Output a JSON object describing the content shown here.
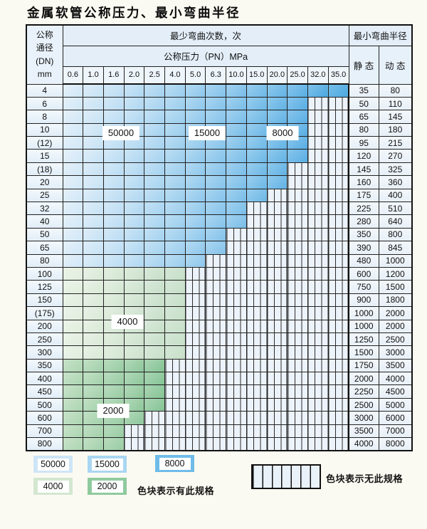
{
  "title": "金属软管公称压力、最小弯曲半径",
  "table": {
    "dn_header_lines": [
      "公称",
      "通径",
      "(DN)",
      "mm"
    ],
    "cycles_header": "最少弯曲次数，次",
    "pressure_header": "公称压力（PN）MPa",
    "radius_header": "最小弯曲半径",
    "static_label": "静 态",
    "dynamic_label": "动 态",
    "pressures": [
      "0.6",
      "1.0",
      "1.6",
      "2.0",
      "2.5",
      "4.0",
      "5.0",
      "6.3",
      "10.0",
      "15.0",
      "20.0",
      "25.0",
      "32.0",
      "35.0"
    ],
    "zone_labels": [
      "50000",
      "15000",
      "8000",
      "4000",
      "2000"
    ],
    "rows": [
      {
        "dn": "4",
        "zone": "blue",
        "spec_through": "35.0",
        "static": "35",
        "dynamic": "80"
      },
      {
        "dn": "6",
        "zone": "blue",
        "spec_through": "25.0",
        "static": "50",
        "dynamic": "110"
      },
      {
        "dn": "8",
        "zone": "blue",
        "spec_through": "25.0",
        "static": "65",
        "dynamic": "145"
      },
      {
        "dn": "10",
        "zone": "blue",
        "spec_through": "25.0",
        "static": "80",
        "dynamic": "180"
      },
      {
        "dn": "(12)",
        "zone": "blue",
        "spec_through": "25.0",
        "static": "95",
        "dynamic": "215"
      },
      {
        "dn": "15",
        "zone": "blue",
        "spec_through": "25.0",
        "static": "120",
        "dynamic": "270"
      },
      {
        "dn": "(18)",
        "zone": "blue",
        "spec_through": "20.0",
        "static": "145",
        "dynamic": "325"
      },
      {
        "dn": "20",
        "zone": "blue",
        "spec_through": "20.0",
        "static": "160",
        "dynamic": "360"
      },
      {
        "dn": "25",
        "zone": "blue",
        "spec_through": "15.0",
        "static": "175",
        "dynamic": "400"
      },
      {
        "dn": "32",
        "zone": "blue",
        "spec_through": "10.0",
        "static": "225",
        "dynamic": "510"
      },
      {
        "dn": "40",
        "zone": "blue",
        "spec_through": "10.0",
        "static": "280",
        "dynamic": "640"
      },
      {
        "dn": "50",
        "zone": "blue",
        "spec_through": "6.3",
        "static": "350",
        "dynamic": "800"
      },
      {
        "dn": "65",
        "zone": "blue",
        "spec_through": "6.3",
        "static": "390",
        "dynamic": "845"
      },
      {
        "dn": "80",
        "zone": "blue",
        "spec_through": "5.0",
        "static": "480",
        "dynamic": "1000"
      },
      {
        "dn": "100",
        "zone": "green4000",
        "spec_through": "4.0",
        "static": "600",
        "dynamic": "1200"
      },
      {
        "dn": "125",
        "zone": "green4000",
        "spec_through": "4.0",
        "static": "750",
        "dynamic": "1500"
      },
      {
        "dn": "150",
        "zone": "green4000",
        "spec_through": "4.0",
        "static": "900",
        "dynamic": "1800"
      },
      {
        "dn": "(175)",
        "zone": "green4000",
        "spec_through": "4.0",
        "static": "1000",
        "dynamic": "2000"
      },
      {
        "dn": "200",
        "zone": "green4000",
        "spec_through": "4.0",
        "static": "1000",
        "dynamic": "2000"
      },
      {
        "dn": "250",
        "zone": "green4000",
        "spec_through": "4.0",
        "static": "1250",
        "dynamic": "2500"
      },
      {
        "dn": "300",
        "zone": "green4000",
        "spec_through": "4.0",
        "static": "1500",
        "dynamic": "3000"
      },
      {
        "dn": "350",
        "zone": "green2000",
        "spec_through": "2.5",
        "static": "1750",
        "dynamic": "3500"
      },
      {
        "dn": "400",
        "zone": "green2000",
        "spec_through": "2.5",
        "static": "2000",
        "dynamic": "4000"
      },
      {
        "dn": "450",
        "zone": "green2000",
        "spec_through": "2.5",
        "static": "2250",
        "dynamic": "4500"
      },
      {
        "dn": "500",
        "zone": "green2000",
        "spec_through": "2.5",
        "static": "2500",
        "dynamic": "5000"
      },
      {
        "dn": "600",
        "zone": "green2000",
        "spec_through": "2.0",
        "static": "3000",
        "dynamic": "6000"
      },
      {
        "dn": "700",
        "zone": "green2000",
        "spec_through": "1.6",
        "static": "3500",
        "dynamic": "7000"
      },
      {
        "dn": "800",
        "zone": "green2000",
        "spec_through": "1.6",
        "static": "4000",
        "dynamic": "8000"
      }
    ]
  },
  "legend": {
    "swatches": [
      {
        "label": "50000",
        "color": "#cde5f7"
      },
      {
        "label": "15000",
        "color": "#a9d6f2"
      },
      {
        "label": "8000",
        "color": "#6fbce9"
      },
      {
        "label": "4000",
        "color": "#d3e7d0"
      },
      {
        "label": "2000",
        "color": "#8fca9e"
      }
    ],
    "has_spec_text": "色块表示有此规格",
    "no_spec_text": "色块表示无此规格"
  },
  "colors": {
    "ramps": {
      "blue": [
        "#dcecf8",
        "#4ba8e1"
      ],
      "green4000": [
        "#e6f0e1",
        "#c6dfc8"
      ],
      "green2000": [
        "#b6d9b8",
        "#84c394"
      ]
    },
    "nospec_bg": "#edf3fa",
    "grid_line": "#222222",
    "header_bg": "#e3eef8",
    "page_bg": "#fbfaf2"
  },
  "chart_data": {
    "type": "table",
    "title": "金属软管公称压力、最小弯曲半径",
    "columns": [
      "公称通径(DN) mm",
      "0.6",
      "1.0",
      "1.6",
      "2.0",
      "2.5",
      "4.0",
      "5.0",
      "6.3",
      "10.0",
      "15.0",
      "20.0",
      "25.0",
      "32.0",
      "35.0",
      "静态",
      "动态"
    ],
    "pressure_unit": "公称压力（PN）MPa",
    "radius_header": "最小弯曲半径",
    "cycles_header": "最少弯曲次数，次",
    "rows": [
      [
        "4",
        "35.0",
        35,
        80
      ],
      [
        "6",
        "25.0",
        50,
        110
      ],
      [
        "8",
        "25.0",
        65,
        145
      ],
      [
        "10",
        "25.0",
        80,
        180
      ],
      [
        "(12)",
        "25.0",
        95,
        215
      ],
      [
        "15",
        "25.0",
        120,
        270
      ],
      [
        "(18)",
        "20.0",
        145,
        325
      ],
      [
        "20",
        "20.0",
        160,
        360
      ],
      [
        "25",
        "15.0",
        175,
        400
      ],
      [
        "32",
        "10.0",
        225,
        510
      ],
      [
        "40",
        "10.0",
        280,
        640
      ],
      [
        "50",
        "6.3",
        350,
        800
      ],
      [
        "65",
        "6.3",
        390,
        845
      ],
      [
        "80",
        "5.0",
        480,
        1000
      ],
      [
        "100",
        "4.0",
        600,
        1200
      ],
      [
        "125",
        "4.0",
        750,
        1500
      ],
      [
        "150",
        "4.0",
        900,
        1800
      ],
      [
        "(175)",
        "4.0",
        1000,
        2000
      ],
      [
        "200",
        "4.0",
        1000,
        2000
      ],
      [
        "250",
        "4.0",
        1250,
        2500
      ],
      [
        "300",
        "4.0",
        1500,
        3000
      ],
      [
        "350",
        "2.5",
        1750,
        3500
      ],
      [
        "400",
        "2.5",
        2000,
        4000
      ],
      [
        "450",
        "2.5",
        2250,
        4500
      ],
      [
        "500",
        "2.5",
        2500,
        5000
      ],
      [
        "600",
        "2.0",
        3000,
        6000
      ],
      [
        "700",
        "1.6",
        3500,
        7000
      ],
      [
        "800",
        "1.6",
        4000,
        8000
      ]
    ],
    "rows_note": "each row: [DN, highest PN with spec available (colored cells span 0.6 up to this PN), static min bend radius, dynamic min bend radius]",
    "bend_cycle_zones": [
      {
        "cycles": 50000,
        "dn_rows": "4-80",
        "pn_columns": "0.6-2.5"
      },
      {
        "cycles": 15000,
        "dn_rows": "4-80",
        "pn_columns": "4.0-6.3"
      },
      {
        "cycles": 8000,
        "dn_rows": "4-80",
        "pn_columns": "10.0-35.0"
      },
      {
        "cycles": 4000,
        "dn_rows": "100-300",
        "pn_columns": "0.6-4.0"
      },
      {
        "cycles": 2000,
        "dn_rows": "350-800",
        "pn_columns": "0.6-2.5"
      }
    ],
    "legend": [
      "色块表示有此规格",
      "色块表示无此规格"
    ]
  }
}
